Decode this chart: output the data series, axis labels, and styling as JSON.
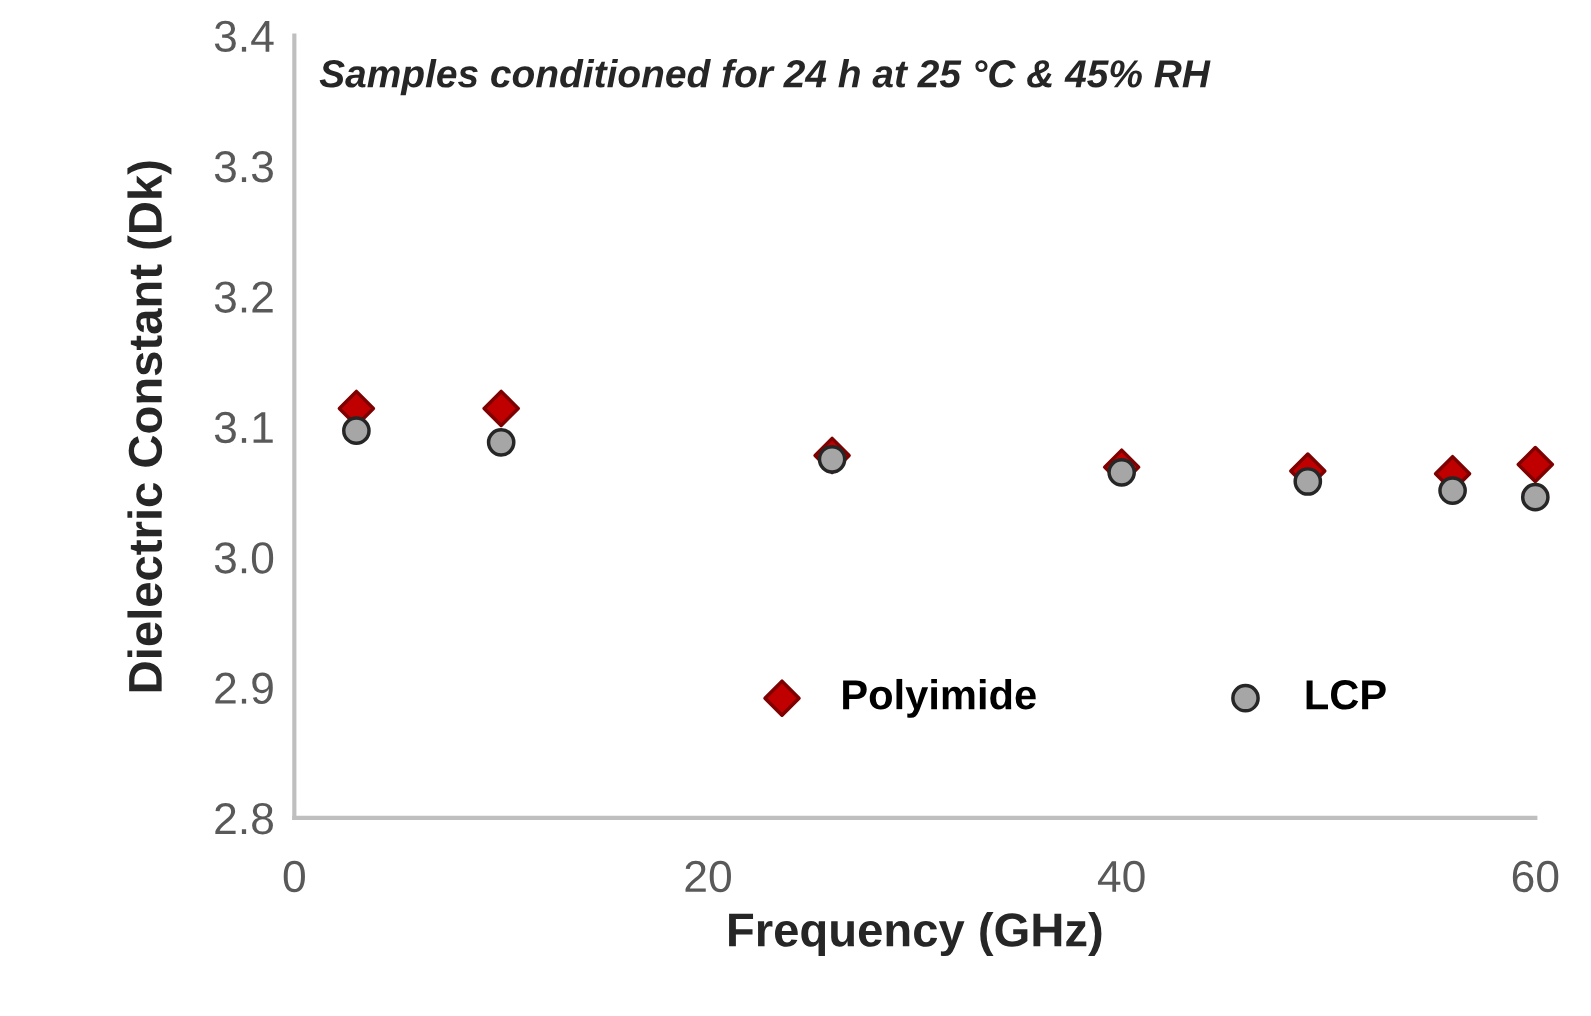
{
  "chart_data": {
    "type": "scatter",
    "xlabel": "Frequency (GHz)",
    "ylabel": "Dielectric Constant (Dk)",
    "annotations": [
      "Samples conditioned for 24 h at 25 °C & 45% RH"
    ],
    "xlim": [
      0,
      60
    ],
    "xticks": [
      0,
      20,
      40,
      60
    ],
    "ylim": [
      2.8,
      3.4
    ],
    "yticks": [
      {
        "value": 2.8,
        "label": "2.8"
      },
      {
        "value": 2.9,
        "label": "2.9"
      },
      {
        "value": 3.0,
        "label": "3.0"
      },
      {
        "value": 3.1,
        "label": "3.1"
      },
      {
        "value": 3.2,
        "label": "3.2"
      },
      {
        "value": 3.3,
        "label": "3.3"
      },
      {
        "value": 3.4,
        "label": "3.4"
      }
    ],
    "grid": false,
    "legend": "bottom",
    "series": [
      {
        "name": "Polyimide",
        "color": "#c00000",
        "marker": "diamond",
        "x": [
          3,
          10,
          26,
          40,
          49,
          56,
          60
        ],
        "values": [
          3.114,
          3.114,
          3.078,
          3.069,
          3.066,
          3.064,
          3.071
        ]
      },
      {
        "name": "LCP",
        "color": "#a6a6a6",
        "marker": "circle",
        "x": [
          3,
          10,
          26,
          40,
          49,
          56,
          60
        ],
        "values": [
          3.097,
          3.088,
          3.075,
          3.065,
          3.058,
          3.051,
          3.046
        ]
      }
    ]
  }
}
